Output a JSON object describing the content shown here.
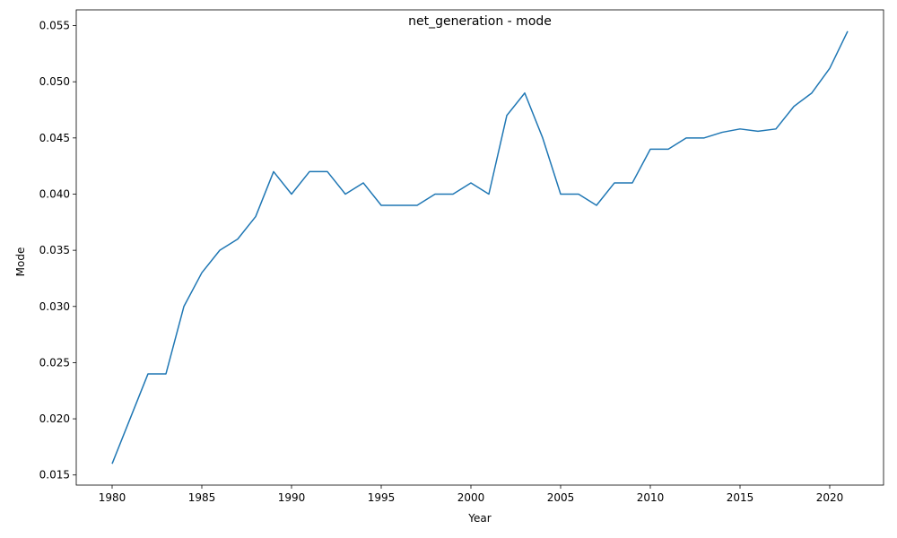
{
  "chart_data": {
    "type": "line",
    "title": "net_generation - mode",
    "xlabel": "Year",
    "ylabel": "Mode",
    "xlim": [
      1978,
      2023
    ],
    "ylim": [
      0.0141,
      0.0564
    ],
    "xticks": [
      1980,
      1985,
      1990,
      1995,
      2000,
      2005,
      2010,
      2015,
      2020
    ],
    "yticks": [
      0.015,
      0.02,
      0.025,
      0.03,
      0.035,
      0.04,
      0.045,
      0.05,
      0.055
    ],
    "ytick_labels": [
      "0.015",
      "0.020",
      "0.025",
      "0.030",
      "0.035",
      "0.040",
      "0.045",
      "0.050",
      "0.055"
    ],
    "grid": false,
    "color": "#1f77b4",
    "series": [
      {
        "x": [
          1980,
          1981,
          1982,
          1983,
          1984,
          1985,
          1986,
          1987,
          1988,
          1989,
          1990,
          1991,
          1992,
          1993,
          1994,
          1995,
          1996,
          1997,
          1998,
          1999,
          2000,
          2001,
          2002,
          2003,
          2004,
          2005,
          2006,
          2007,
          2008,
          2009,
          2010,
          2011,
          2012,
          2013,
          2014,
          2015,
          2016,
          2017,
          2018,
          2019,
          2020,
          2021
        ],
        "y": [
          0.016,
          0.02,
          0.024,
          0.024,
          0.03,
          0.033,
          0.035,
          0.036,
          0.038,
          0.042,
          0.04,
          0.042,
          0.042,
          0.04,
          0.041,
          0.039,
          0.039,
          0.039,
          0.04,
          0.04,
          0.041,
          0.04,
          0.047,
          0.049,
          0.045,
          0.04,
          0.04,
          0.039,
          0.041,
          0.041,
          0.044,
          0.044,
          0.045,
          0.045,
          0.0455,
          0.0458,
          0.0456,
          0.0458,
          0.0478,
          0.049,
          0.0512,
          0.0545
        ]
      }
    ]
  }
}
